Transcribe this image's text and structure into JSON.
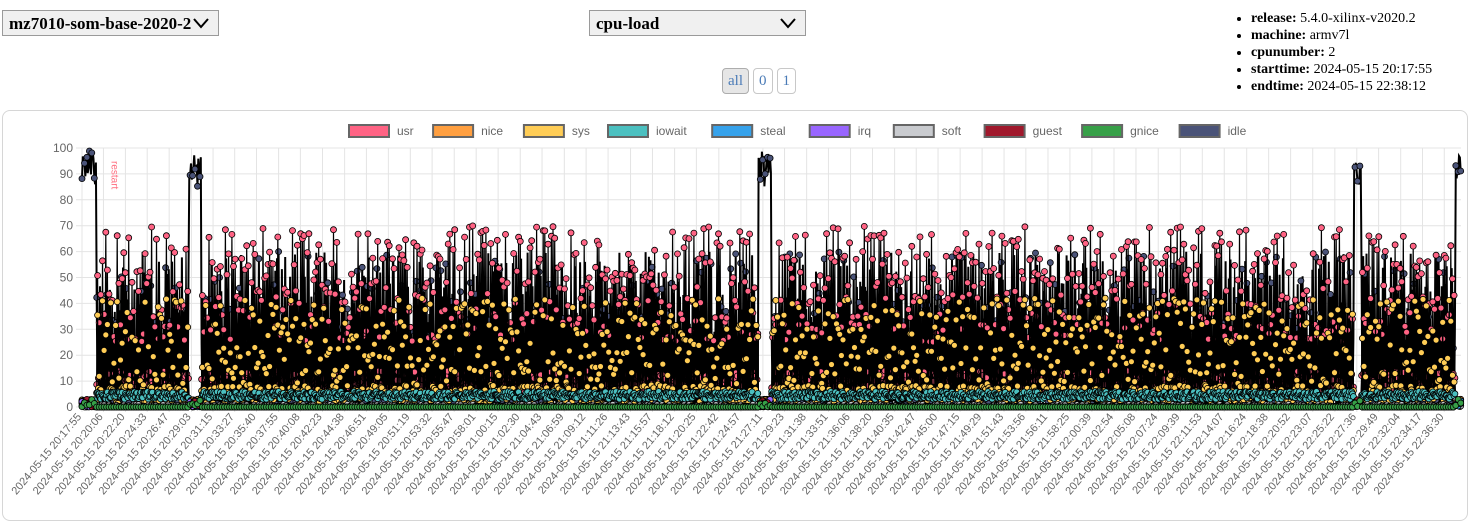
{
  "host_select": {
    "value": "mz7010-som-base-2020-2"
  },
  "metric_select": {
    "value": "cpu-load"
  },
  "cpu_buttons": [
    {
      "label": "all",
      "active": true
    },
    {
      "label": "0",
      "active": false
    },
    {
      "label": "1",
      "active": false
    }
  ],
  "system_info": [
    {
      "key": "release:",
      "value": "5.4.0-xilinx-v2020.2"
    },
    {
      "key": "machine:",
      "value": "armv7l"
    },
    {
      "key": "cpunumber:",
      "value": "2"
    },
    {
      "key": "starttime:",
      "value": "2024-05-15 20:17:55"
    },
    {
      "key": "endtime:",
      "value": "2024-05-15 22:38:12"
    }
  ],
  "chart_data": {
    "type": "line",
    "title": "",
    "xlabel": "",
    "ylabel": "",
    "ylim": [
      0,
      100
    ],
    "yticks": [
      0,
      10,
      20,
      30,
      40,
      50,
      60,
      70,
      80,
      90,
      100
    ],
    "grid": true,
    "legend_position": "top",
    "annotations": [
      {
        "text": "restart",
        "x": "2024-05-15 20:19:05",
        "color": "#ff6f80"
      }
    ],
    "x_tick_labels": [
      "2024-05-15 20:17:55",
      "2024-05-15 20:20:06",
      "2024-05-15 20:22:20",
      "2024-05-15 20:24:33",
      "2024-05-15 20:26:47",
      "2024-05-15 20:29:03",
      "2024-05-15 20:31:15",
      "2024-05-15 20:33:27",
      "2024-05-15 20:35:40",
      "2024-05-15 20:37:55",
      "2024-05-15 20:40:08",
      "2024-05-15 20:42:23",
      "2024-05-15 20:44:38",
      "2024-05-15 20:46:51",
      "2024-05-15 20:49:05",
      "2024-05-15 20:51:19",
      "2024-05-15 20:53:32",
      "2024-05-15 20:55:47",
      "2024-05-15 20:58:01",
      "2024-05-15 21:00:15",
      "2024-05-15 21:02:30",
      "2024-05-15 21:04:43",
      "2024-05-15 21:06:59",
      "2024-05-15 21:09:12",
      "2024-05-15 21:11:26",
      "2024-05-15 21:13:43",
      "2024-05-15 21:15:57",
      "2024-05-15 21:18:12",
      "2024-05-15 21:20:25",
      "2024-05-15 21:22:42",
      "2024-05-15 21:24:57",
      "2024-05-15 21:27:11",
      "2024-05-15 21:29:23",
      "2024-05-15 21:31:38",
      "2024-05-15 21:33:51",
      "2024-05-15 21:36:06",
      "2024-05-15 21:38:20",
      "2024-05-15 21:40:35",
      "2024-05-15 21:42:47",
      "2024-05-15 21:45:00",
      "2024-05-15 21:47:15",
      "2024-05-15 21:49:29",
      "2024-05-15 21:51:43",
      "2024-05-15 21:53:56",
      "2024-05-15 21:56:11",
      "2024-05-15 21:58:25",
      "2024-05-15 22:00:39",
      "2024-05-15 22:02:54",
      "2024-05-15 22:05:08",
      "2024-05-15 22:07:24",
      "2024-05-15 22:09:39",
      "2024-05-15 22:11:53",
      "2024-05-15 22:14:07",
      "2024-05-15 22:16:24",
      "2024-05-15 22:18:38",
      "2024-05-15 22:20:52",
      "2024-05-15 22:23:07",
      "2024-05-15 22:25:22",
      "2024-05-15 22:27:36",
      "2024-05-15 22:29:49",
      "2024-05-15 22:32:04",
      "2024-05-15 22:34:17",
      "2024-05-15 22:36:30"
    ],
    "restart_periods": [
      {
        "start": "2024-05-15 20:17:55",
        "end": "2024-05-15 20:19:20"
      },
      {
        "start": "2024-05-15 20:28:50",
        "end": "2024-05-15 20:30:00"
      },
      {
        "start": "2024-05-15 21:26:45",
        "end": "2024-05-15 21:28:00"
      },
      {
        "start": "2024-05-15 22:27:20",
        "end": "2024-05-15 22:28:00"
      },
      {
        "start": "2024-05-15 22:37:40",
        "end": "2024-05-15 22:38:12"
      }
    ],
    "series": [
      {
        "name": "usr",
        "color": "#ff6384",
        "range": [
          25,
          70
        ]
      },
      {
        "name": "nice",
        "color": "#ff9f40",
        "range": [
          0,
          0
        ]
      },
      {
        "name": "sys",
        "color": "#ffcd56",
        "range": [
          5,
          42
        ]
      },
      {
        "name": "iowait",
        "color": "#4bc0c0",
        "range": [
          3,
          6
        ]
      },
      {
        "name": "steal",
        "color": "#36a2eb",
        "range": [
          0,
          0
        ]
      },
      {
        "name": "irq",
        "color": "#9966ff",
        "range": [
          0,
          0
        ]
      },
      {
        "name": "soft",
        "color": "#c9cbcf",
        "range": [
          0,
          1
        ]
      },
      {
        "name": "guest",
        "color": "#a0182c",
        "range": [
          0,
          0
        ]
      },
      {
        "name": "gnice",
        "color": "#37a048",
        "range": [
          0,
          0
        ]
      },
      {
        "name": "idle",
        "color": "#4a5378",
        "range": [
          0,
          60
        ]
      }
    ]
  }
}
